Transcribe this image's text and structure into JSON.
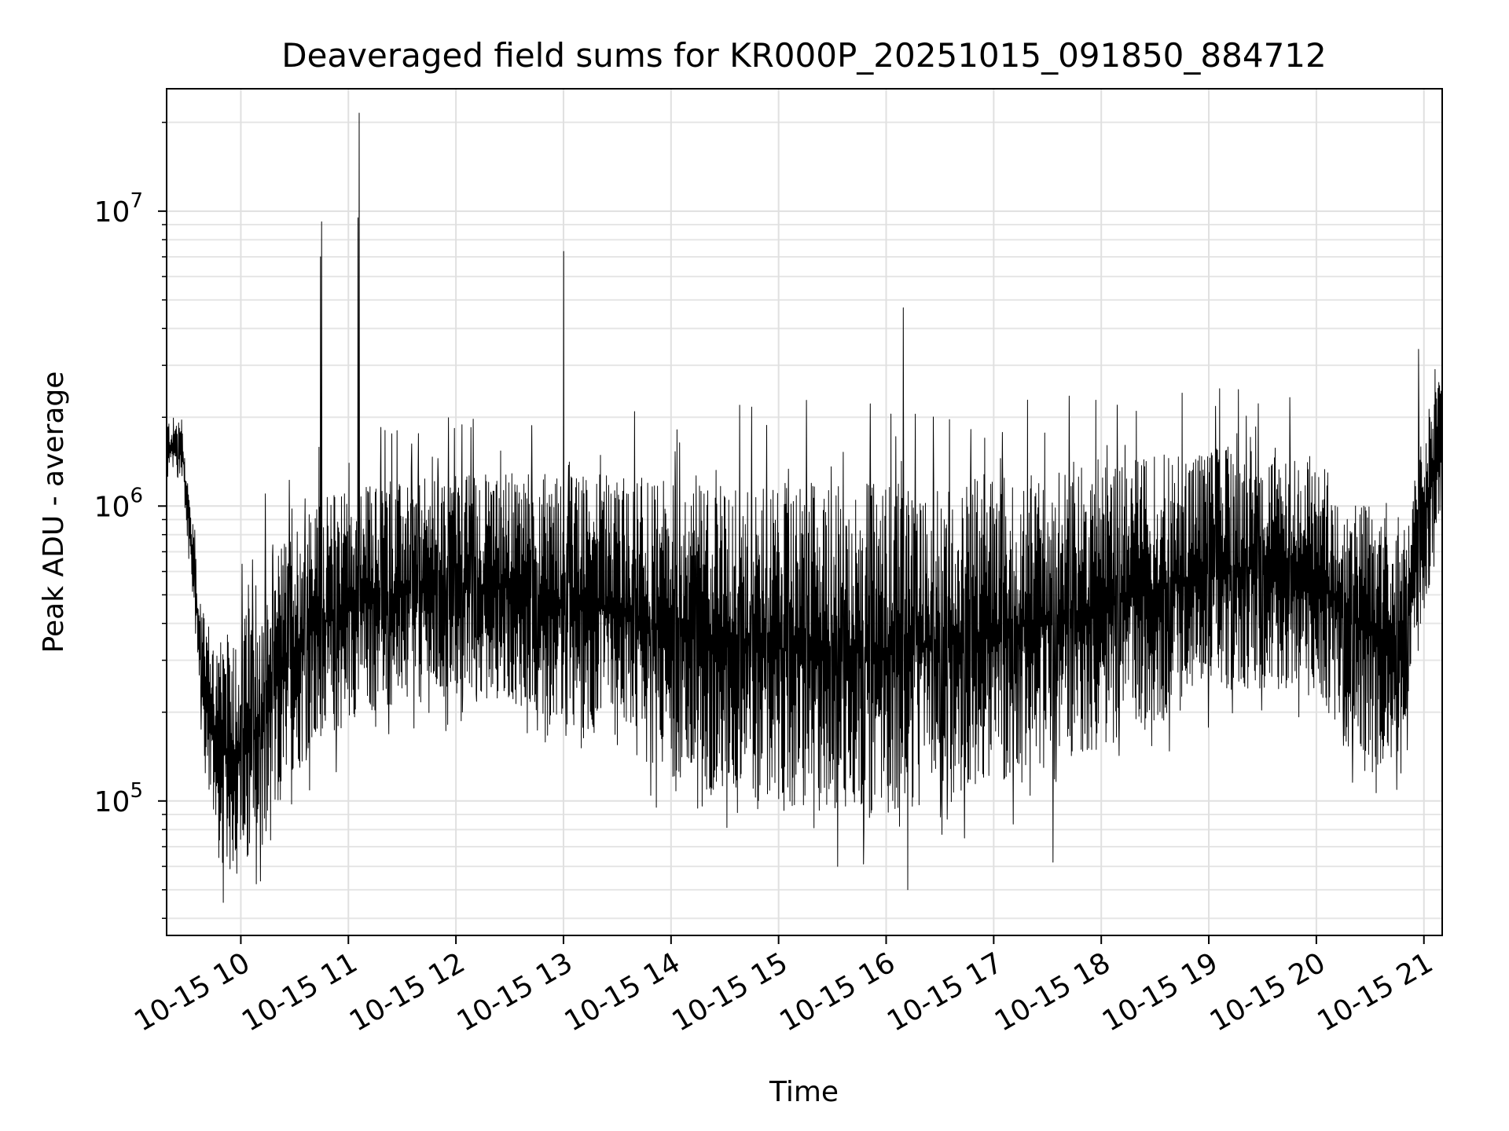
{
  "chart_data": {
    "type": "line",
    "title": "Deaveraged field sums for KR000P_20251015_091850_884712",
    "xlabel": "Time",
    "ylabel": "Peak ADU - average",
    "yscale": "log",
    "ylim": [
      35000,
      26000000
    ],
    "xlim_hours": [
      9.31,
      21.17
    ],
    "x_ticks": [
      {
        "value": 10,
        "label": "10-15 10"
      },
      {
        "value": 11,
        "label": "10-15 11"
      },
      {
        "value": 12,
        "label": "10-15 12"
      },
      {
        "value": 13,
        "label": "10-15 13"
      },
      {
        "value": 14,
        "label": "10-15 14"
      },
      {
        "value": 15,
        "label": "10-15 15"
      },
      {
        "value": 16,
        "label": "10-15 16"
      },
      {
        "value": 17,
        "label": "10-15 17"
      },
      {
        "value": 18,
        "label": "10-15 18"
      },
      {
        "value": 19,
        "label": "10-15 19"
      },
      {
        "value": 20,
        "label": "10-15 20"
      },
      {
        "value": 21,
        "label": "10-15 21"
      }
    ],
    "y_major_ticks": [
      {
        "value": 100000,
        "base": "10",
        "exp": "5"
      },
      {
        "value": 1000000,
        "base": "10",
        "exp": "6"
      },
      {
        "value": 10000000,
        "base": "10",
        "exp": "7"
      }
    ],
    "grid": true,
    "line_color": "#000000",
    "series": [
      {
        "name": "Peak ADU - average",
        "envelope": {
          "x": [
            9.31,
            9.45,
            9.55,
            9.65,
            9.8,
            10.0,
            10.2,
            10.4,
            10.6,
            10.8,
            11.0,
            11.5,
            12.0,
            12.5,
            13.0,
            13.5,
            14.0,
            14.5,
            15.0,
            15.5,
            16.0,
            16.5,
            17.0,
            17.5,
            18.0,
            18.5,
            19.0,
            19.5,
            20.0,
            20.3,
            20.6,
            20.8,
            20.95,
            21.05,
            21.17
          ],
          "low": [
            1200000,
            1300000,
            500000,
            150000,
            60000,
            55000,
            60000,
            100000,
            140000,
            150000,
            190000,
            210000,
            220000,
            220000,
            170000,
            150000,
            120000,
            100000,
            90000,
            90000,
            90000,
            100000,
            110000,
            130000,
            150000,
            180000,
            230000,
            240000,
            220000,
            160000,
            130000,
            140000,
            300000,
            600000,
            900000
          ],
          "high": [
            2000000,
            2000000,
            900000,
            450000,
            350000,
            400000,
            600000,
            800000,
            1000000,
            1100000,
            1200000,
            1200000,
            1300000,
            1300000,
            1300000,
            1300000,
            1200000,
            1200000,
            1200000,
            1200000,
            1200000,
            1200000,
            1300000,
            1300000,
            1400000,
            1500000,
            1600000,
            1600000,
            1400000,
            1200000,
            1000000,
            900000,
            1500000,
            2300000,
            2800000
          ]
        },
        "spikes": [
          {
            "x": 10.75,
            "y": 9200000
          },
          {
            "x": 10.74,
            "y": 7000000
          },
          {
            "x": 11.1,
            "y": 21500000
          },
          {
            "x": 11.09,
            "y": 9500000
          },
          {
            "x": 13.0,
            "y": 7300000
          },
          {
            "x": 16.16,
            "y": 4700000
          },
          {
            "x": 16.27,
            "y": 2050000
          },
          {
            "x": 15.55,
            "y": 60000
          },
          {
            "x": 16.2,
            "y": 50000
          },
          {
            "x": 17.55,
            "y": 62000
          },
          {
            "x": 18.15,
            "y": 2200000
          },
          {
            "x": 19.1,
            "y": 2500000
          },
          {
            "x": 20.95,
            "y": 3400000
          }
        ]
      }
    ]
  }
}
